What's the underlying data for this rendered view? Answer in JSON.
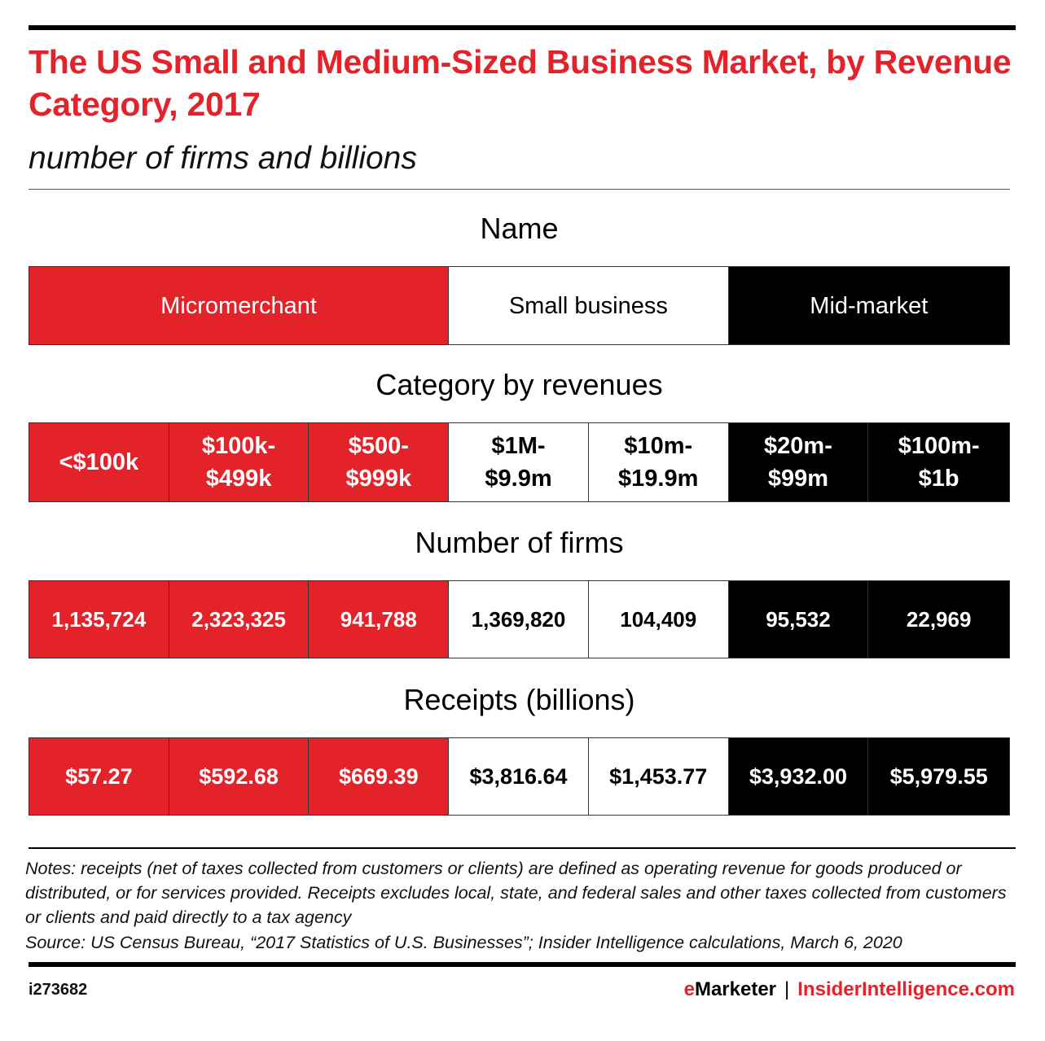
{
  "chart_data": {
    "type": "table",
    "title": "The US Small and Medium-Sized Business Market, by Revenue Category, 2017",
    "subtitle": "number of firms and billions",
    "sections": {
      "name": {
        "label": "Name",
        "groups": [
          {
            "label": "Micromerchant",
            "span": 3,
            "color": "#e3222a"
          },
          {
            "label": "Small business",
            "span": 2,
            "color": "#ffffff"
          },
          {
            "label": "Mid-market",
            "span": 2,
            "color": "#000000"
          }
        ]
      },
      "category": {
        "label": "Category by revenues",
        "values": [
          "<$100k",
          "$100k-\n$499k",
          "$500-\n$999k",
          "$1M-\n$9.9m",
          "$10m-\n$19.9m",
          "$20m-\n$99m",
          "$100m-\n$1b"
        ]
      },
      "firms": {
        "label": "Number of firms",
        "values": [
          "1,135,724",
          "2,323,325",
          "941,788",
          "1,369,820",
          "104,409",
          "95,532",
          "22,969"
        ]
      },
      "receipts": {
        "label": "Receipts (billions)",
        "values": [
          "$57.27",
          "$592.68",
          "$669.39",
          "$3,816.64",
          "$1,453.77",
          "$3,932.00",
          "$5,979.55"
        ]
      }
    },
    "column_colors": [
      "#e3222a",
      "#e3222a",
      "#e3222a",
      "#ffffff",
      "#ffffff",
      "#000000",
      "#000000"
    ]
  },
  "notes": "Notes: receipts (net of taxes collected from customers or clients) are defined as operating revenue for goods produced or distributed, or for services provided. Receipts excludes local, state, and federal sales and other taxes collected from customers or clients and paid directly to a tax agency",
  "source": "Source: US Census Bureau, “2017 Statistics of U.S. Businesses”; Insider Intelligence calculations, March 6, 2020",
  "footer": {
    "chart_id": "i273682",
    "brand_emarketer_e": "e",
    "brand_emarketer_rest": "Marketer",
    "separator": "|",
    "brand_insider": "InsiderIntelligence.com"
  }
}
